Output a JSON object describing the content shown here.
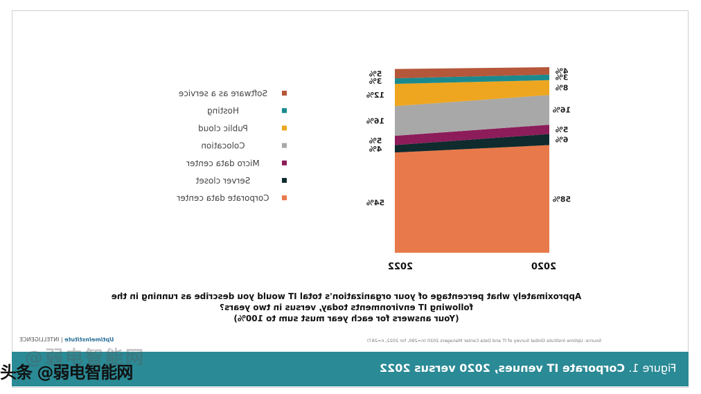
{
  "chart_data": {
    "type": "bar",
    "stacked": true,
    "percent_stacked": true,
    "categories": [
      "2020",
      "2022"
    ],
    "series": [
      {
        "name": "Corporate data center",
        "color": "#e8794a",
        "values": [
          58,
          54
        ],
        "labels": [
          "58%",
          "54%"
        ]
      },
      {
        "name": "Server closet",
        "color": "#0f2b2d",
        "values": [
          6,
          4
        ],
        "labels": [
          "6%",
          "4%"
        ]
      },
      {
        "name": "Micro data center",
        "color": "#8c1c5a",
        "values": [
          5,
          5
        ],
        "labels": [
          "5%",
          "5%"
        ]
      },
      {
        "name": "Colocation",
        "color": "#a8a8a8",
        "values": [
          16,
          16
        ],
        "labels": [
          "16%",
          "16%"
        ]
      },
      {
        "name": "Public cloud",
        "color": "#eea620",
        "values": [
          8,
          12
        ],
        "labels": [
          "8%",
          "12%"
        ]
      },
      {
        "name": "Hosting",
        "color": "#1b8a8e",
        "values": [
          3,
          3
        ],
        "labels": [
          "3%",
          "3%"
        ]
      },
      {
        "name": "Software as a service",
        "color": "#b5573a",
        "values": [
          4,
          5
        ],
        "labels": [
          "4%",
          "5%"
        ]
      }
    ],
    "ylim": [
      0,
      100
    ],
    "legend": "left"
  },
  "question": [
    "Approximately what percentage of your organization's total IT would you describe as running in the",
    "following IT environments today, versus in two years?",
    "(Your answers for each year must sum to 100%)"
  ],
  "source": "Source: Uptime Institute Global Survey of IT and Data Center Managers 2020 (n=290, for 2022, n=287)",
  "logo": {
    "brand": "UptimeInstitute",
    "suffix": "INTELLIGENCE"
  },
  "figure": {
    "prefix": "Figure 1.",
    "title": "Corporate IT venues, 2020 versus 2022"
  },
  "watermark": {
    "main": "头条 @弱电智能网",
    "ghost": "@弱电智能网"
  }
}
